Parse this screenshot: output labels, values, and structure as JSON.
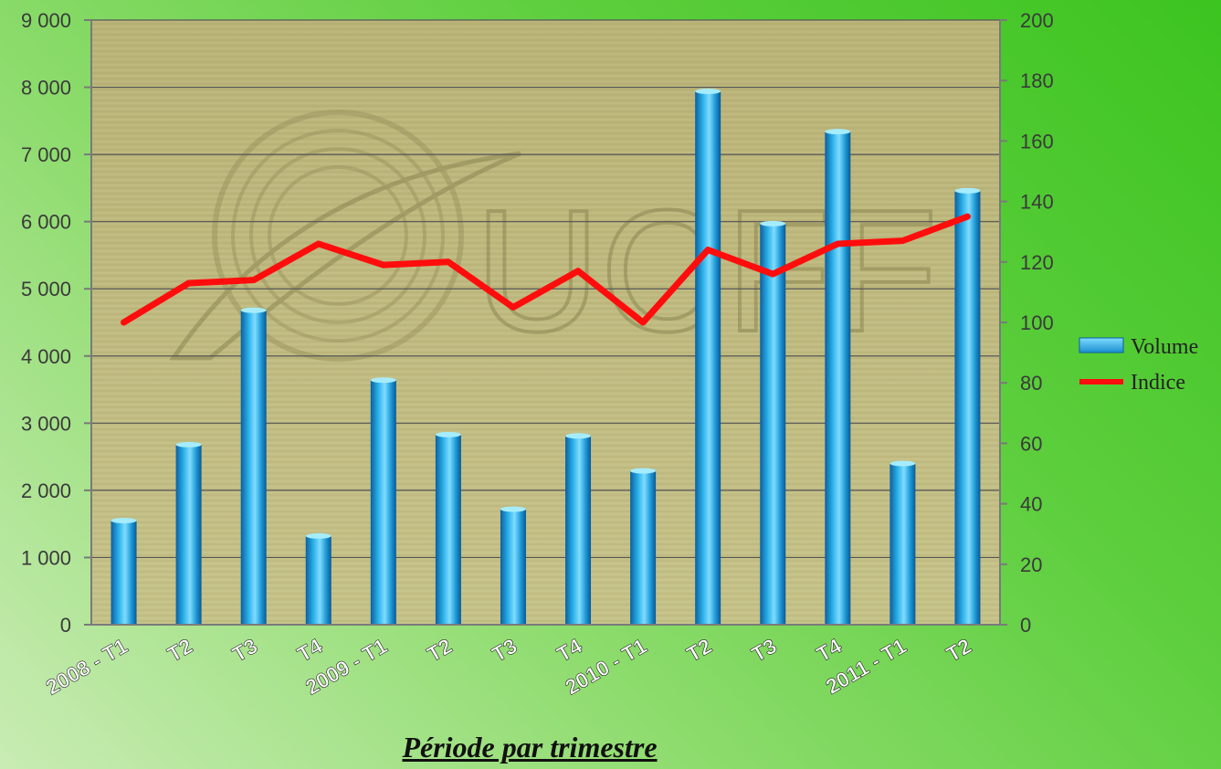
{
  "chart_data": {
    "type": "bar",
    "title": "",
    "xlabel": "Période par trimestre",
    "categories": [
      "2008 - T1",
      "T2",
      "T3",
      "T4",
      "2009 - T1",
      "T2",
      "T3",
      "T4",
      "2010 - T1",
      "T2",
      "T3",
      "T4",
      "2011 - T1",
      "T2"
    ],
    "series": [
      {
        "name": "Volume",
        "type": "bar",
        "axis": "left",
        "color": "#1e9fd8",
        "values": [
          1550,
          2680,
          4680,
          1320,
          3640,
          2830,
          1720,
          2810,
          2290,
          7940,
          5970,
          7340,
          2400,
          6460
        ]
      },
      {
        "name": "Indice",
        "type": "line",
        "axis": "right",
        "color": "#ff0d0d",
        "values": [
          100,
          113,
          114,
          126,
          119,
          120,
          105,
          117,
          100,
          124,
          116,
          126,
          127,
          135
        ]
      }
    ],
    "left_axis": {
      "ylim": [
        0,
        9000
      ],
      "ticks": [
        "0",
        "1 000",
        "2 000",
        "3 000",
        "4 000",
        "5 000",
        "6 000",
        "7 000",
        "8 000",
        "9 000"
      ]
    },
    "right_axis": {
      "ylim": [
        0,
        200
      ],
      "ticks": [
        "0",
        "20",
        "40",
        "60",
        "80",
        "100",
        "120",
        "140",
        "160",
        "180",
        "200"
      ]
    },
    "grid": true,
    "legend": "right",
    "watermark": "UCFF"
  }
}
